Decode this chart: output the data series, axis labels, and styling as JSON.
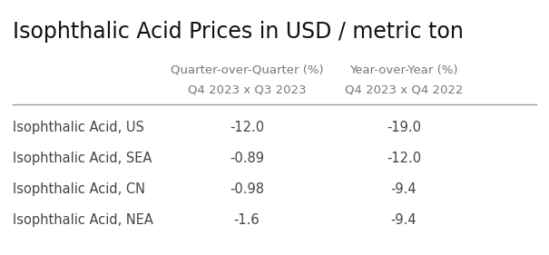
{
  "title": "Isophthalic Acid Prices in USD / metric ton",
  "col_headers_line1": [
    "Quarter-over-Quarter (%)",
    "Year-over-Year (%)"
  ],
  "col_headers_line2": [
    "Q4 2023 x Q3 2023",
    "Q4 2023 x Q4 2022"
  ],
  "rows": [
    [
      "Isophthalic Acid, US",
      "-12.0",
      "-19.0"
    ],
    [
      "Isophthalic Acid, SEA",
      "-0.89",
      "-12.0"
    ],
    [
      "Isophthalic Acid, CN",
      "-0.98",
      "-9.4"
    ],
    [
      "Isophthalic Acid, NEA",
      "-1.6",
      "-9.4"
    ]
  ],
  "background_color": "#ffffff",
  "text_color": "#444444",
  "title_color": "#111111",
  "header_color": "#777777",
  "line_color": "#999999",
  "title_fontsize": 17,
  "header_fontsize": 9.5,
  "data_fontsize": 10.5
}
